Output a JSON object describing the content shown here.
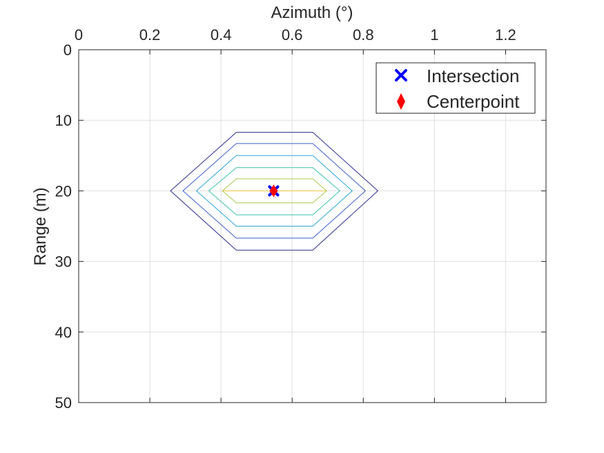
{
  "chart_data": {
    "type": "contour",
    "xlabel": "Azimuth (°)",
    "ylabel": "Range (m)",
    "xlim": [
      0,
      1.3136
    ],
    "ylim": [
      0,
      50
    ],
    "y_reversed": true,
    "x_axis_location": "top",
    "x_ticks": [
      0,
      0.2,
      0.4,
      0.6,
      0.8,
      1,
      1.2
    ],
    "x_tick_labels": [
      "0",
      "0.2",
      "0.4",
      "0.6",
      "0.8",
      "1",
      "1.2"
    ],
    "y_ticks": [
      0,
      10,
      20,
      30,
      40,
      50
    ],
    "y_tick_labels": [
      "0",
      "10",
      "20",
      "30",
      "40",
      "50"
    ],
    "grid": true,
    "legend_position": "top-right",
    "contours": [
      {
        "level": 1,
        "color": "#2a2a8e",
        "points": [
          [
            0.443,
            11.7
          ],
          [
            0.658,
            11.7
          ],
          [
            0.841,
            20
          ],
          [
            0.658,
            28.4
          ],
          [
            0.443,
            28.4
          ],
          [
            0.258,
            20
          ]
        ]
      },
      {
        "level": 2,
        "color": "#3b5fcc",
        "points": [
          [
            0.443,
            13.3
          ],
          [
            0.658,
            13.3
          ],
          [
            0.806,
            20
          ],
          [
            0.658,
            26.7
          ],
          [
            0.443,
            26.7
          ],
          [
            0.293,
            20
          ]
        ]
      },
      {
        "level": 3,
        "color": "#2aa6d8",
        "points": [
          [
            0.443,
            15.0
          ],
          [
            0.658,
            15.0
          ],
          [
            0.769,
            20
          ],
          [
            0.658,
            25.0
          ],
          [
            0.443,
            25.0
          ],
          [
            0.331,
            20
          ]
        ]
      },
      {
        "level": 4,
        "color": "#3cc1a8",
        "points": [
          [
            0.443,
            16.7
          ],
          [
            0.658,
            16.7
          ],
          [
            0.734,
            20
          ],
          [
            0.658,
            23.4
          ],
          [
            0.443,
            23.4
          ],
          [
            0.366,
            20
          ]
        ]
      },
      {
        "level": 5,
        "color": "#a8c84e",
        "points": [
          [
            0.443,
            18.3
          ],
          [
            0.658,
            18.3
          ],
          [
            0.697,
            20
          ],
          [
            0.658,
            21.7
          ],
          [
            0.443,
            21.7
          ],
          [
            0.404,
            20
          ]
        ]
      },
      {
        "level": 6,
        "color": "#f2c53d",
        "points": [
          [
            0.405,
            20
          ],
          [
            0.697,
            20
          ]
        ]
      }
    ],
    "series": [
      {
        "name": "Intersection",
        "marker": "x",
        "color": "#0000ff",
        "points": [
          [
            0.548,
            20.0
          ]
        ]
      },
      {
        "name": "Centerpoint",
        "marker": "diamond",
        "color": "#ff0000",
        "points": [
          [
            0.548,
            20.0
          ]
        ]
      }
    ]
  }
}
